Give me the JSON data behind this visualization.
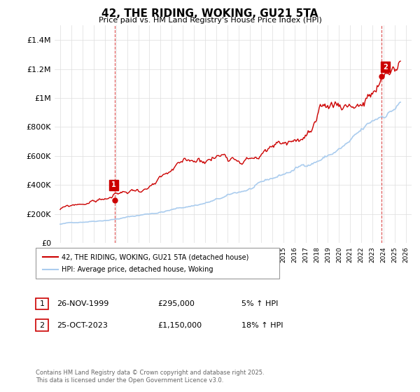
{
  "title": "42, THE RIDING, WOKING, GU21 5TA",
  "subtitle": "Price paid vs. HM Land Registry's House Price Index (HPI)",
  "legend_line1": "42, THE RIDING, WOKING, GU21 5TA (detached house)",
  "legend_line2": "HPI: Average price, detached house, Woking",
  "transaction1_date": "26-NOV-1999",
  "transaction1_price": "£295,000",
  "transaction1_hpi": "5% ↑ HPI",
  "transaction2_date": "25-OCT-2023",
  "transaction2_price": "£1,150,000",
  "transaction2_hpi": "18% ↑ HPI",
  "footer": "Contains HM Land Registry data © Crown copyright and database right 2025.\nThis data is licensed under the Open Government Licence v3.0.",
  "ylim": [
    0,
    1500000
  ],
  "yticks": [
    0,
    200000,
    400000,
    600000,
    800000,
    1000000,
    1200000,
    1400000
  ],
  "ytick_labels": [
    "£0",
    "£200K",
    "£400K",
    "£600K",
    "£800K",
    "£1M",
    "£1.2M",
    "£1.4M"
  ],
  "red_color": "#cc0000",
  "blue_color": "#aaccee",
  "marker1_x": 1999.9,
  "marker1_y": 295000,
  "marker2_x": 2023.82,
  "marker2_y": 1150000,
  "dashed_line1_x": 1999.9,
  "dashed_line2_x": 2023.82,
  "xlim_start": 1994.5,
  "xlim_end": 2026.5,
  "background_color": "#ffffff",
  "grid_color": "#dddddd"
}
